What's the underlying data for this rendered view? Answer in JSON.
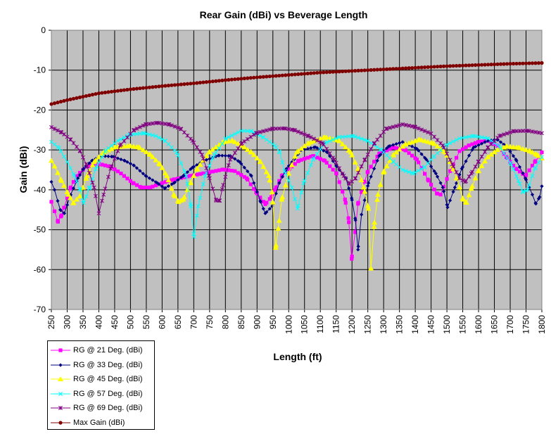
{
  "chart_data": {
    "type": "line",
    "title": "Rear Gain (dBi) vs  Beverage Length",
    "xlabel": "Length (ft)",
    "ylabel": "Gain (dBi)",
    "xlim": [
      250,
      1800
    ],
    "ylim": [
      -70,
      0
    ],
    "xticks": [
      250,
      300,
      350,
      400,
      450,
      500,
      550,
      600,
      650,
      700,
      750,
      800,
      850,
      900,
      950,
      1000,
      1050,
      1100,
      1150,
      1200,
      1250,
      1300,
      1350,
      1400,
      1450,
      1500,
      1550,
      1600,
      1650,
      1700,
      1750,
      1800
    ],
    "yticks": [
      0,
      -10,
      -20,
      -30,
      -40,
      -50,
      -60,
      -70
    ],
    "grid": true,
    "legend_position": "bottom-left",
    "series": [
      {
        "name": "RG @ 21 Deg. (dBi)",
        "color": "#ff00ff",
        "marker": "square",
        "points": [
          [
            250,
            -43
          ],
          [
            271,
            -48
          ],
          [
            282,
            -46.4
          ],
          [
            311,
            -39.4
          ],
          [
            330,
            -36.5
          ],
          [
            360,
            -34.2
          ],
          [
            400,
            -33.5
          ],
          [
            437,
            -34.2
          ],
          [
            470,
            -35.9
          ],
          [
            508,
            -38.3
          ],
          [
            534,
            -39.4
          ],
          [
            563,
            -39.4
          ],
          [
            600,
            -38.3
          ],
          [
            637,
            -37.4
          ],
          [
            689,
            -36.5
          ],
          [
            748,
            -35.6
          ],
          [
            793,
            -34.9
          ],
          [
            830,
            -35.3
          ],
          [
            867,
            -37.1
          ],
          [
            897,
            -40.6
          ],
          [
            926,
            -43.6
          ],
          [
            945,
            -41.8
          ],
          [
            956,
            -40
          ],
          [
            978,
            -36.5
          ],
          [
            1002,
            -34.7
          ],
          [
            1032,
            -32.7
          ],
          [
            1077,
            -31.5
          ],
          [
            1114,
            -32.7
          ],
          [
            1151,
            -35.9
          ],
          [
            1178,
            -42.4
          ],
          [
            1189,
            -47.1
          ],
          [
            1199,
            -57.3
          ],
          [
            1210,
            -50.6
          ],
          [
            1219,
            -43.5
          ],
          [
            1249,
            -35.6
          ],
          [
            1286,
            -30.9
          ],
          [
            1331,
            -29.4
          ],
          [
            1368,
            -30
          ],
          [
            1405,
            -32.4
          ],
          [
            1442,
            -37.7
          ],
          [
            1468,
            -40.9
          ],
          [
            1480,
            -41.2
          ],
          [
            1510,
            -35.3
          ],
          [
            1540,
            -30.3
          ],
          [
            1569,
            -28.9
          ],
          [
            1599,
            -28
          ],
          [
            1629,
            -27.7
          ],
          [
            1659,
            -28.9
          ],
          [
            1688,
            -31.8
          ],
          [
            1718,
            -34.7
          ],
          [
            1748,
            -36.5
          ],
          [
            1778,
            -33
          ],
          [
            1800,
            -30.6
          ]
        ]
      },
      {
        "name": "RG @ 33 Deg. (dBi)",
        "color": "#000080",
        "marker": "diamond",
        "points": [
          [
            250,
            -38
          ],
          [
            260,
            -40
          ],
          [
            278,
            -45
          ],
          [
            291,
            -45.9
          ],
          [
            311,
            -41.2
          ],
          [
            334,
            -37.1
          ],
          [
            352,
            -34.7
          ],
          [
            378,
            -32.7
          ],
          [
            408,
            -31.5
          ],
          [
            445,
            -31.7
          ],
          [
            482,
            -32.7
          ],
          [
            511,
            -33.9
          ],
          [
            548,
            -36.5
          ],
          [
            585,
            -38.3
          ],
          [
            608,
            -39.6
          ],
          [
            637,
            -38.3
          ],
          [
            667,
            -36.5
          ],
          [
            696,
            -34.4
          ],
          [
            733,
            -32.7
          ],
          [
            778,
            -31.4
          ],
          [
            815,
            -31.5
          ],
          [
            845,
            -33
          ],
          [
            882,
            -36.5
          ],
          [
            911,
            -43
          ],
          [
            926,
            -45.9
          ],
          [
            948,
            -44.1
          ],
          [
            970,
            -38.3
          ],
          [
            993,
            -34.7
          ],
          [
            1017,
            -32.4
          ],
          [
            1040,
            -30
          ],
          [
            1084,
            -29.3
          ],
          [
            1122,
            -30.6
          ],
          [
            1151,
            -34.1
          ],
          [
            1181,
            -37.1
          ],
          [
            1199,
            -42.1
          ],
          [
            1211,
            -47.6
          ],
          [
            1219,
            -55
          ],
          [
            1230,
            -46.2
          ],
          [
            1252,
            -38.3
          ],
          [
            1286,
            -31.5
          ],
          [
            1316,
            -29.1
          ],
          [
            1360,
            -28
          ],
          [
            1405,
            -29.7
          ],
          [
            1435,
            -32.4
          ],
          [
            1465,
            -35.9
          ],
          [
            1487,
            -39.4
          ],
          [
            1502,
            -44.4
          ],
          [
            1525,
            -39.4
          ],
          [
            1547,
            -34.7
          ],
          [
            1584,
            -29.4
          ],
          [
            1629,
            -27.7
          ],
          [
            1659,
            -27.4
          ],
          [
            1688,
            -29.1
          ],
          [
            1718,
            -32.4
          ],
          [
            1748,
            -37.1
          ],
          [
            1770,
            -41.2
          ],
          [
            1781,
            -43.5
          ],
          [
            1793,
            -41.8
          ],
          [
            1800,
            -39.1
          ]
        ]
      },
      {
        "name": "RG @ 45 Deg. (dBi)",
        "color": "#ffff00",
        "marker": "triangle",
        "points": [
          [
            250,
            -32.7
          ],
          [
            260,
            -34.1
          ],
          [
            282,
            -37.7
          ],
          [
            304,
            -41.2
          ],
          [
            319,
            -43.3
          ],
          [
            341,
            -41.5
          ],
          [
            363,
            -36.5
          ],
          [
            385,
            -33
          ],
          [
            415,
            -30.6
          ],
          [
            452,
            -29.3
          ],
          [
            497,
            -29
          ],
          [
            526,
            -29.3
          ],
          [
            563,
            -31.2
          ],
          [
            593,
            -33.6
          ],
          [
            615,
            -36.5
          ],
          [
            637,
            -41.2
          ],
          [
            652,
            -43
          ],
          [
            667,
            -42.4
          ],
          [
            689,
            -38.3
          ],
          [
            711,
            -34.7
          ],
          [
            748,
            -30.6
          ],
          [
            793,
            -28
          ],
          [
            822,
            -27.7
          ],
          [
            852,
            -28.9
          ],
          [
            882,
            -30.6
          ],
          [
            911,
            -33
          ],
          [
            937,
            -36.5
          ],
          [
            948,
            -40.6
          ],
          [
            959,
            -54.5
          ],
          [
            967,
            -49.7
          ],
          [
            978,
            -42.4
          ],
          [
            1000,
            -35.9
          ],
          [
            1025,
            -30.6
          ],
          [
            1062,
            -28.3
          ],
          [
            1114,
            -26.8
          ],
          [
            1159,
            -27.7
          ],
          [
            1196,
            -30.6
          ],
          [
            1219,
            -34.7
          ],
          [
            1237,
            -39.4
          ],
          [
            1252,
            -44.7
          ],
          [
            1260,
            -59.7
          ],
          [
            1271,
            -48.2
          ],
          [
            1282,
            -41.2
          ],
          [
            1301,
            -35.3
          ],
          [
            1331,
            -31.2
          ],
          [
            1368,
            -28.6
          ],
          [
            1413,
            -27.4
          ],
          [
            1457,
            -28.3
          ],
          [
            1495,
            -30.6
          ],
          [
            1517,
            -34.1
          ],
          [
            1540,
            -39.4
          ],
          [
            1551,
            -42.4
          ],
          [
            1562,
            -43.2
          ],
          [
            1577,
            -39.7
          ],
          [
            1599,
            -35.3
          ],
          [
            1629,
            -31.8
          ],
          [
            1659,
            -30
          ],
          [
            1688,
            -29.1
          ],
          [
            1726,
            -29.4
          ],
          [
            1763,
            -30.3
          ],
          [
            1785,
            -31.2
          ],
          [
            1800,
            -32.1
          ]
        ]
      },
      {
        "name": "RG @ 57 Deg. (dBi)",
        "color": "#00ffff",
        "marker": "x",
        "points": [
          [
            250,
            -28
          ],
          [
            274,
            -29.5
          ],
          [
            300,
            -33
          ],
          [
            323,
            -36.5
          ],
          [
            341,
            -40
          ],
          [
            352,
            -43.3
          ],
          [
            371,
            -39.4
          ],
          [
            393,
            -34.1
          ],
          [
            423,
            -30
          ],
          [
            460,
            -27.7
          ],
          [
            497,
            -26.2
          ],
          [
            543,
            -25.8
          ],
          [
            580,
            -26.5
          ],
          [
            609,
            -27.7
          ],
          [
            646,
            -30.6
          ],
          [
            676,
            -36.5
          ],
          [
            691,
            -44.1
          ],
          [
            701,
            -51.8
          ],
          [
            714,
            -44.1
          ],
          [
            736,
            -36.5
          ],
          [
            765,
            -31.2
          ],
          [
            802,
            -27.1
          ],
          [
            850,
            -25.2
          ],
          [
            882,
            -25.3
          ],
          [
            919,
            -26.8
          ],
          [
            956,
            -28.9
          ],
          [
            972,
            -30.6
          ],
          [
            987,
            -35.3
          ],
          [
            1010,
            -39.4
          ],
          [
            1028,
            -44.7
          ],
          [
            1047,
            -38.3
          ],
          [
            1077,
            -32.4
          ],
          [
            1114,
            -28.3
          ],
          [
            1159,
            -26.8
          ],
          [
            1204,
            -26.5
          ],
          [
            1249,
            -27.7
          ],
          [
            1293,
            -30
          ],
          [
            1331,
            -33
          ],
          [
            1360,
            -35
          ],
          [
            1394,
            -35.9
          ],
          [
            1428,
            -34.4
          ],
          [
            1457,
            -31.8
          ],
          [
            1495,
            -28.9
          ],
          [
            1540,
            -27.1
          ],
          [
            1584,
            -26.5
          ],
          [
            1629,
            -27.1
          ],
          [
            1666,
            -29.1
          ],
          [
            1703,
            -33.6
          ],
          [
            1726,
            -37.7
          ],
          [
            1741,
            -40.6
          ],
          [
            1755,
            -40
          ],
          [
            1778,
            -34.7
          ],
          [
            1800,
            -31.8
          ]
        ]
      },
      {
        "name": "RG @ 69 Deg. (dBi)",
        "color": "#800080",
        "marker": "asterisk",
        "points": [
          [
            250,
            -24.3
          ],
          [
            282,
            -25.6
          ],
          [
            311,
            -27.4
          ],
          [
            341,
            -30.3
          ],
          [
            363,
            -34.1
          ],
          [
            385,
            -39.4
          ],
          [
            400,
            -45.9
          ],
          [
            415,
            -41.2
          ],
          [
            437,
            -34.7
          ],
          [
            467,
            -28.9
          ],
          [
            511,
            -25
          ],
          [
            548,
            -23.6
          ],
          [
            585,
            -23.2
          ],
          [
            622,
            -23.6
          ],
          [
            659,
            -24.7
          ],
          [
            696,
            -27.7
          ],
          [
            726,
            -31.2
          ],
          [
            748,
            -36.5
          ],
          [
            771,
            -42.7
          ],
          [
            782,
            -42.7
          ],
          [
            793,
            -38.8
          ],
          [
            815,
            -32.4
          ],
          [
            852,
            -28.3
          ],
          [
            897,
            -25.8
          ],
          [
            948,
            -24.7
          ],
          [
            986,
            -24.6
          ],
          [
            1017,
            -25
          ],
          [
            1062,
            -26.5
          ],
          [
            1107,
            -28.3
          ],
          [
            1144,
            -32.4
          ],
          [
            1174,
            -36.5
          ],
          [
            1192,
            -38.5
          ],
          [
            1211,
            -37.1
          ],
          [
            1241,
            -32.4
          ],
          [
            1271,
            -28.3
          ],
          [
            1308,
            -24.7
          ],
          [
            1360,
            -23.6
          ],
          [
            1398,
            -24.2
          ],
          [
            1450,
            -25.9
          ],
          [
            1487,
            -28.9
          ],
          [
            1517,
            -33.6
          ],
          [
            1540,
            -37.1
          ],
          [
            1558,
            -38
          ],
          [
            1577,
            -35.9
          ],
          [
            1599,
            -33
          ],
          [
            1629,
            -29.4
          ],
          [
            1666,
            -26.5
          ],
          [
            1711,
            -25.3
          ],
          [
            1755,
            -25.2
          ],
          [
            1800,
            -25.8
          ]
        ]
      },
      {
        "name": "Max Gain (dBi)",
        "color": "#800000",
        "marker": "circle",
        "points": [
          [
            250,
            -18.5
          ],
          [
            300,
            -17.5
          ],
          [
            400,
            -15.8
          ],
          [
            500,
            -14.8
          ],
          [
            600,
            -14
          ],
          [
            700,
            -13.3
          ],
          [
            800,
            -12.5
          ],
          [
            900,
            -11.8
          ],
          [
            1000,
            -11.2
          ],
          [
            1100,
            -10.6
          ],
          [
            1200,
            -10.2
          ],
          [
            1300,
            -9.8
          ],
          [
            1400,
            -9.4
          ],
          [
            1500,
            -9
          ],
          [
            1600,
            -8.7
          ],
          [
            1700,
            -8.4
          ],
          [
            1800,
            -8.2
          ]
        ]
      }
    ]
  }
}
